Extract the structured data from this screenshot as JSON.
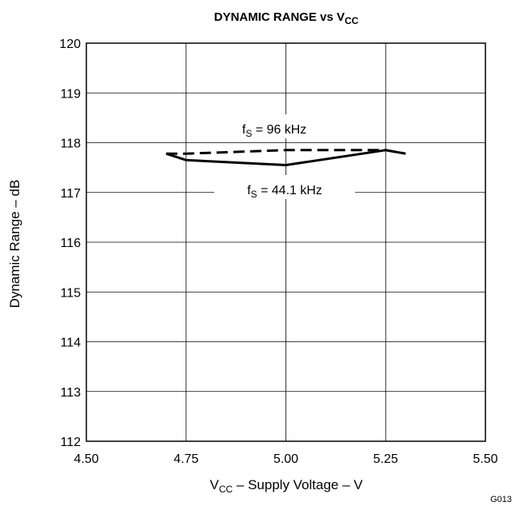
{
  "chart_data": {
    "type": "line",
    "title": {
      "main": "DYNAMIC RANGE vs V",
      "sub": "CC"
    },
    "xlabel": {
      "pre": "V",
      "sub": "CC",
      "post": " – Supply Voltage – V"
    },
    "ylabel": "Dynamic Range – dB",
    "xlim": [
      4.5,
      5.5
    ],
    "ylim": [
      112,
      120
    ],
    "xticks": [
      4.5,
      4.75,
      5.0,
      5.25,
      5.5
    ],
    "xtick_labels": [
      "4.50",
      "4.75",
      "5.00",
      "5.25",
      "5.50"
    ],
    "yticks": [
      112,
      113,
      114,
      115,
      116,
      117,
      118,
      119,
      120
    ],
    "ytick_labels": [
      "112",
      "113",
      "114",
      "115",
      "116",
      "117",
      "118",
      "119",
      "120"
    ],
    "grid": true,
    "series": [
      {
        "name": "fS = 96 kHz",
        "label": {
          "pre": "f",
          "sub": "S",
          "post": " = 96 kHz"
        },
        "style": "dashed",
        "x": [
          4.7,
          4.75,
          5.0,
          5.25,
          5.3
        ],
        "y": [
          117.78,
          117.78,
          117.85,
          117.85,
          117.78
        ]
      },
      {
        "name": "fS = 44.1 kHz",
        "label": {
          "pre": "f",
          "sub": "S",
          "post": " = 44.1 kHz"
        },
        "style": "solid",
        "x": [
          4.7,
          4.75,
          5.0,
          5.25,
          5.3
        ],
        "y": [
          117.78,
          117.65,
          117.55,
          117.85,
          117.78
        ]
      }
    ],
    "figure_code": "G013"
  }
}
